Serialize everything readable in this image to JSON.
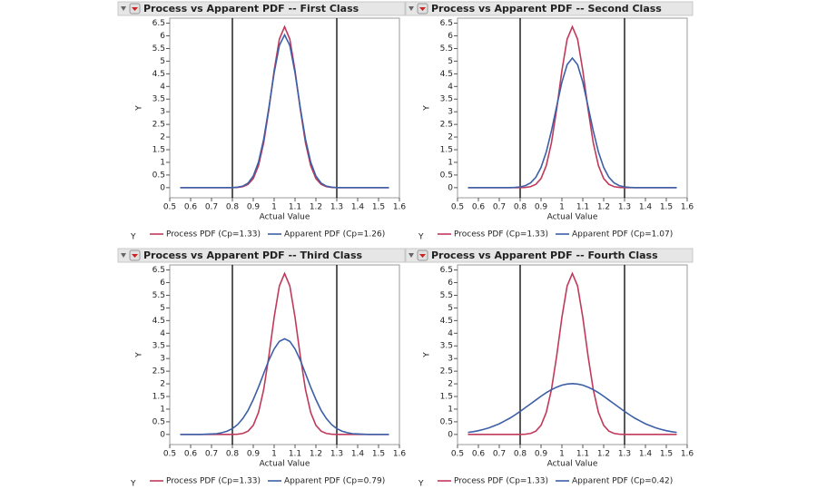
{
  "chart_data": [
    {
      "type": "line",
      "title": "Process vs Apparent PDF -- First Class",
      "x_label": "Actual Value",
      "y_label": "Y",
      "legend_title": "Y",
      "x": [
        0.55,
        0.575,
        0.6,
        0.625,
        0.65,
        0.675,
        0.7,
        0.725,
        0.75,
        0.775,
        0.8,
        0.825,
        0.85,
        0.875,
        0.9,
        0.925,
        0.95,
        0.975,
        1.0,
        1.025,
        1.05,
        1.075,
        1.1,
        1.125,
        1.15,
        1.175,
        1.2,
        1.225,
        1.25,
        1.275,
        1.3,
        1.325,
        1.35,
        1.375,
        1.4,
        1.425,
        1.45,
        1.475,
        1.5,
        1.525,
        1.55
      ],
      "series": [
        {
          "name": "Process PDF (Cp=1.33)",
          "color": "#c03a5c",
          "values": [
            0,
            0,
            0,
            0,
            0,
            0,
            0,
            0,
            0,
            0,
            0,
            0.01,
            0.04,
            0.13,
            0.36,
            0.87,
            1.78,
            3.11,
            4.63,
            5.87,
            6.36,
            5.87,
            4.63,
            3.11,
            1.78,
            0.87,
            0.36,
            0.13,
            0.04,
            0.01,
            0,
            0,
            0,
            0,
            0,
            0,
            0,
            0,
            0,
            0,
            0
          ]
        },
        {
          "name": "Apparent PDF (Cp=1.26)",
          "color": "#3d5fa6",
          "values": [
            0,
            0,
            0,
            0,
            0,
            0,
            0,
            0,
            0,
            0,
            0,
            0.02,
            0.06,
            0.18,
            0.46,
            1.01,
            1.92,
            3.17,
            4.54,
            5.62,
            6.04,
            5.62,
            4.54,
            3.17,
            1.92,
            1.01,
            0.46,
            0.18,
            0.06,
            0.02,
            0,
            0,
            0,
            0,
            0,
            0,
            0,
            0,
            0,
            0,
            0
          ]
        }
      ],
      "ref_lines": [
        0.8,
        1.3
      ],
      "ref_color": "#000000",
      "xlim": [
        0.5,
        1.6
      ],
      "ylim": [
        -0.4,
        6.7
      ],
      "xticks": [
        0.5,
        0.6,
        0.7,
        0.8,
        0.9,
        1,
        1.1,
        1.2,
        1.3,
        1.4,
        1.5,
        1.6
      ],
      "yticks": [
        0,
        0.5,
        1,
        1.5,
        2,
        2.5,
        3,
        3.5,
        4,
        4.5,
        5,
        5.5,
        6,
        6.5
      ]
    },
    {
      "type": "line",
      "title": "Process vs Apparent PDF -- Second Class",
      "x_label": "Actual Value",
      "y_label": "Y",
      "legend_title": "Y",
      "x": [
        0.55,
        0.575,
        0.6,
        0.625,
        0.65,
        0.675,
        0.7,
        0.725,
        0.75,
        0.775,
        0.8,
        0.825,
        0.85,
        0.875,
        0.9,
        0.925,
        0.95,
        0.975,
        1.0,
        1.025,
        1.05,
        1.075,
        1.1,
        1.125,
        1.15,
        1.175,
        1.2,
        1.225,
        1.25,
        1.275,
        1.3,
        1.325,
        1.35,
        1.375,
        1.4,
        1.425,
        1.45,
        1.475,
        1.5,
        1.525,
        1.55
      ],
      "series": [
        {
          "name": "Process PDF (Cp=1.33)",
          "color": "#c03a5c",
          "values": [
            0,
            0,
            0,
            0,
            0,
            0,
            0,
            0,
            0,
            0,
            0,
            0.01,
            0.04,
            0.13,
            0.36,
            0.87,
            1.78,
            3.11,
            4.63,
            5.87,
            6.36,
            5.87,
            4.63,
            3.11,
            1.78,
            0.87,
            0.36,
            0.13,
            0.04,
            0.01,
            0,
            0,
            0,
            0,
            0,
            0,
            0,
            0,
            0,
            0,
            0
          ]
        },
        {
          "name": "Apparent PDF (Cp=1.07)",
          "color": "#3d5fa6",
          "values": [
            0,
            0,
            0,
            0,
            0,
            0,
            0,
            0,
            0,
            0.01,
            0.03,
            0.08,
            0.19,
            0.41,
            0.8,
            1.41,
            2.25,
            3.22,
            4.17,
            4.86,
            5.12,
            4.86,
            4.17,
            3.22,
            2.25,
            1.41,
            0.8,
            0.41,
            0.19,
            0.08,
            0.03,
            0.01,
            0,
            0,
            0,
            0,
            0,
            0,
            0,
            0,
            0
          ]
        }
      ],
      "ref_lines": [
        0.8,
        1.3
      ],
      "ref_color": "#000000",
      "xlim": [
        0.5,
        1.6
      ],
      "ylim": [
        -0.4,
        6.7
      ],
      "xticks": [
        0.5,
        0.6,
        0.7,
        0.8,
        0.9,
        1,
        1.1,
        1.2,
        1.3,
        1.4,
        1.5,
        1.6
      ],
      "yticks": [
        0,
        0.5,
        1,
        1.5,
        2,
        2.5,
        3,
        3.5,
        4,
        4.5,
        5,
        5.5,
        6,
        6.5
      ]
    },
    {
      "type": "line",
      "title": "Process vs Apparent PDF -- Third Class",
      "x_label": "Actual Value",
      "y_label": "Y",
      "legend_title": "Y",
      "x": [
        0.55,
        0.575,
        0.6,
        0.625,
        0.65,
        0.675,
        0.7,
        0.725,
        0.75,
        0.775,
        0.8,
        0.825,
        0.85,
        0.875,
        0.9,
        0.925,
        0.95,
        0.975,
        1.0,
        1.025,
        1.05,
        1.075,
        1.1,
        1.125,
        1.15,
        1.175,
        1.2,
        1.225,
        1.25,
        1.275,
        1.3,
        1.325,
        1.35,
        1.375,
        1.4,
        1.425,
        1.45,
        1.475,
        1.5,
        1.525,
        1.55
      ],
      "series": [
        {
          "name": "Process PDF (Cp=1.33)",
          "color": "#c03a5c",
          "values": [
            0,
            0,
            0,
            0,
            0,
            0,
            0,
            0,
            0,
            0,
            0,
            0.01,
            0.04,
            0.13,
            0.36,
            0.87,
            1.78,
            3.11,
            4.63,
            5.87,
            6.36,
            5.87,
            4.63,
            3.11,
            1.78,
            0.87,
            0.36,
            0.13,
            0.04,
            0.01,
            0,
            0,
            0,
            0,
            0,
            0,
            0,
            0,
            0,
            0,
            0
          ]
        },
        {
          "name": "Apparent PDF (Cp=0.79)",
          "color": "#3d5fa6",
          "values": [
            0,
            0,
            0,
            0,
            0,
            0.01,
            0.02,
            0.03,
            0.07,
            0.13,
            0.23,
            0.39,
            0.63,
            0.95,
            1.38,
            1.87,
            2.41,
            2.94,
            3.38,
            3.68,
            3.78,
            3.68,
            3.38,
            2.94,
            2.41,
            1.87,
            1.38,
            0.95,
            0.63,
            0.39,
            0.23,
            0.13,
            0.07,
            0.03,
            0.02,
            0.01,
            0,
            0,
            0,
            0,
            0
          ]
        }
      ],
      "ref_lines": [
        0.8,
        1.3
      ],
      "ref_color": "#000000",
      "xlim": [
        0.5,
        1.6
      ],
      "ylim": [
        -0.4,
        6.7
      ],
      "xticks": [
        0.5,
        0.6,
        0.7,
        0.8,
        0.9,
        1,
        1.1,
        1.2,
        1.3,
        1.4,
        1.5,
        1.6
      ],
      "yticks": [
        0,
        0.5,
        1,
        1.5,
        2,
        2.5,
        3,
        3.5,
        4,
        4.5,
        5,
        5.5,
        6,
        6.5
      ]
    },
    {
      "type": "line",
      "title": "Process vs Apparent PDF -- Fourth Class",
      "x_label": "Actual Value",
      "y_label": "Y",
      "legend_title": "Y",
      "x": [
        0.55,
        0.575,
        0.6,
        0.625,
        0.65,
        0.675,
        0.7,
        0.725,
        0.75,
        0.775,
        0.8,
        0.825,
        0.85,
        0.875,
        0.9,
        0.925,
        0.95,
        0.975,
        1.0,
        1.025,
        1.05,
        1.075,
        1.1,
        1.125,
        1.15,
        1.175,
        1.2,
        1.225,
        1.25,
        1.275,
        1.3,
        1.325,
        1.35,
        1.375,
        1.4,
        1.425,
        1.45,
        1.475,
        1.5,
        1.525,
        1.55
      ],
      "series": [
        {
          "name": "Process PDF (Cp=1.33)",
          "color": "#c03a5c",
          "values": [
            0,
            0,
            0,
            0,
            0,
            0,
            0,
            0,
            0,
            0,
            0,
            0.01,
            0.04,
            0.13,
            0.36,
            0.87,
            1.78,
            3.11,
            4.63,
            5.87,
            6.36,
            5.87,
            4.63,
            3.11,
            1.78,
            0.87,
            0.36,
            0.13,
            0.04,
            0.01,
            0,
            0,
            0,
            0,
            0,
            0,
            0,
            0,
            0,
            0,
            0
          ]
        },
        {
          "name": "Apparent PDF (Cp=0.42)",
          "color": "#3d5fa6",
          "values": [
            0.08,
            0.11,
            0.15,
            0.2,
            0.26,
            0.34,
            0.42,
            0.53,
            0.64,
            0.77,
            0.91,
            1.06,
            1.21,
            1.36,
            1.51,
            1.65,
            1.77,
            1.87,
            1.95,
            1.99,
            2.01,
            1.99,
            1.95,
            1.87,
            1.77,
            1.65,
            1.51,
            1.36,
            1.21,
            1.06,
            0.91,
            0.77,
            0.64,
            0.53,
            0.42,
            0.34,
            0.26,
            0.2,
            0.15,
            0.11,
            0.08
          ]
        }
      ],
      "ref_lines": [
        0.8,
        1.3
      ],
      "ref_color": "#000000",
      "xlim": [
        0.5,
        1.6
      ],
      "ylim": [
        -0.4,
        6.7
      ],
      "xticks": [
        0.5,
        0.6,
        0.7,
        0.8,
        0.9,
        1,
        1.1,
        1.2,
        1.3,
        1.4,
        1.5,
        1.6
      ],
      "yticks": [
        0,
        0.5,
        1,
        1.5,
        2,
        2.5,
        3,
        3.5,
        4,
        4.5,
        5,
        5.5,
        6,
        6.5
      ]
    }
  ]
}
